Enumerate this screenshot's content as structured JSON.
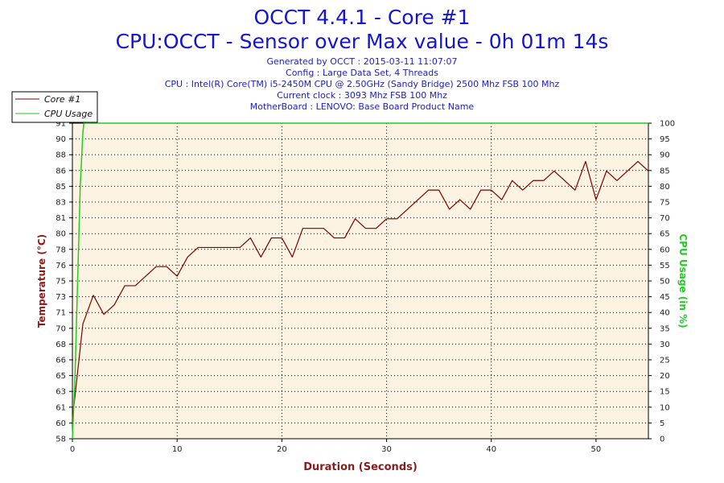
{
  "header": {
    "title": "OCCT 4.4.1 - Core #1",
    "subtitle": "CPU:OCCT - Sensor over Max value - 0h 01m 14s",
    "info_lines": [
      "Generated by OCCT : 2015-03-11 11:07:07",
      "Config : Large Data Set, 4 Threads",
      "CPU : Intel(R) Core(TM) i5-2450M CPU @ 2.50GHz (Sandy Bridge) 2500 Mhz FSB 100 Mhz",
      "Current clock : 3093 Mhz FSB 100 Mhz",
      "MotherBoard : LENOVO: Base Board Product Name"
    ]
  },
  "colors": {
    "plot_background": "#fdf3e3",
    "core_line": "#7a0000",
    "cpu_usage_line": "#22cc22",
    "grid": "#000000",
    "title": "#1515d0",
    "axis_title_left": "#8b1a1a",
    "axis_title_right": "#22cc22"
  },
  "chart_data": {
    "type": "line",
    "xlabel": "Duration (Seconds)",
    "ylabel_left": "Temperature (°C)",
    "ylabel_right": "CPU Usage (in %)",
    "xlim": [
      0,
      55
    ],
    "x_ticks": [
      "0",
      "10",
      "20",
      "30",
      "40",
      "50"
    ],
    "x_tick_values": [
      0,
      10,
      20,
      30,
      40,
      50
    ],
    "ylim_left": [
      58,
      91
    ],
    "y_ticks_left": [
      "58",
      "60",
      "61",
      "63",
      "65",
      "66",
      "68",
      "70",
      "71",
      "73",
      "75",
      "76",
      "78",
      "80",
      "81",
      "83",
      "85",
      "86",
      "88",
      "90",
      "91"
    ],
    "ylim_right": [
      0,
      100
    ],
    "y_ticks_right": [
      "0",
      "5",
      "10",
      "15",
      "20",
      "25",
      "30",
      "35",
      "40",
      "45",
      "50",
      "55",
      "60",
      "65",
      "70",
      "75",
      "80",
      "85",
      "90",
      "95",
      "100"
    ],
    "grid": true,
    "legend_position": "top-left",
    "series": [
      {
        "name": "Core #1",
        "axis": "left",
        "x": [
          0,
          1,
          2,
          3,
          4,
          5,
          6,
          7,
          8,
          9,
          10,
          11,
          12,
          13,
          14,
          15,
          16,
          17,
          18,
          19,
          20,
          21,
          22,
          23,
          24,
          25,
          26,
          27,
          28,
          29,
          30,
          31,
          32,
          33,
          34,
          35,
          36,
          37,
          38,
          39,
          40,
          41,
          42,
          43,
          44,
          45,
          46,
          47,
          48,
          49,
          50,
          51,
          52,
          53,
          54,
          55
        ],
        "values": [
          60,
          70,
          73,
          71,
          72,
          74,
          74,
          75,
          76,
          76,
          75,
          77,
          78,
          78,
          78,
          78,
          78,
          79,
          77,
          79,
          79,
          77,
          80,
          80,
          80,
          79,
          79,
          81,
          80,
          80,
          81,
          81,
          82,
          83,
          84,
          84,
          82,
          83,
          82,
          84,
          84,
          83,
          85,
          84,
          85,
          85,
          86,
          85,
          84,
          87,
          83,
          86,
          85,
          86,
          87,
          86
        ]
      },
      {
        "name": "CPU Usage",
        "axis": "right",
        "x": [
          0,
          0.25,
          0.5,
          0.75,
          1,
          1.1,
          55
        ],
        "values": [
          0,
          20,
          50,
          80,
          97,
          100,
          100
        ]
      }
    ]
  }
}
